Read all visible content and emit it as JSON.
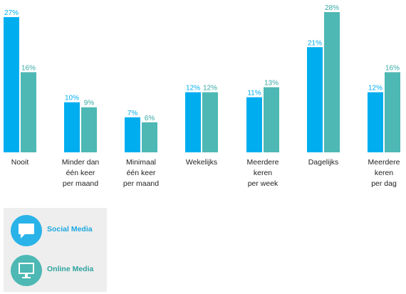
{
  "chart_data": {
    "type": "bar",
    "title": "",
    "xlabel": "",
    "ylabel": "",
    "ylim": [
      0,
      28
    ],
    "grid": false,
    "legend_position": "bottom-left",
    "categories": [
      [
        "Nooit"
      ],
      [
        "Minder dan",
        "één keer",
        "per maand"
      ],
      [
        "Minimaal",
        "één keer",
        "per maand"
      ],
      [
        "Wekelijks"
      ],
      [
        "Meerdere",
        "keren",
        "per week"
      ],
      [
        "Dagelijks"
      ],
      [
        "Meerdere",
        "keren",
        "per dag"
      ]
    ],
    "series": [
      {
        "name": "Social Media",
        "color": "#00aeef",
        "label_color": "#00aeef",
        "values": [
          27,
          10,
          7,
          12,
          11,
          21,
          12
        ],
        "labels": [
          "27%",
          "10%",
          "7%",
          "12%",
          "11%",
          "21%",
          "12%"
        ]
      },
      {
        "name": "Online Media",
        "color": "#4db8b4",
        "label_color": "#34a9a4",
        "values": [
          16,
          9,
          6,
          12,
          13,
          28,
          16
        ],
        "labels": [
          "16%",
          "9%",
          "6%",
          "12%",
          "13%",
          "28%",
          "16%"
        ]
      }
    ]
  },
  "legend": {
    "items": [
      {
        "label": "Social Media",
        "color": "#29b3e8",
        "text_color": "#1aa8e0",
        "icon": "speech-bubble-icon"
      },
      {
        "label": "Online Media",
        "color": "#4db8b4",
        "text_color": "#2fa39f",
        "icon": "monitor-icon"
      }
    ]
  }
}
